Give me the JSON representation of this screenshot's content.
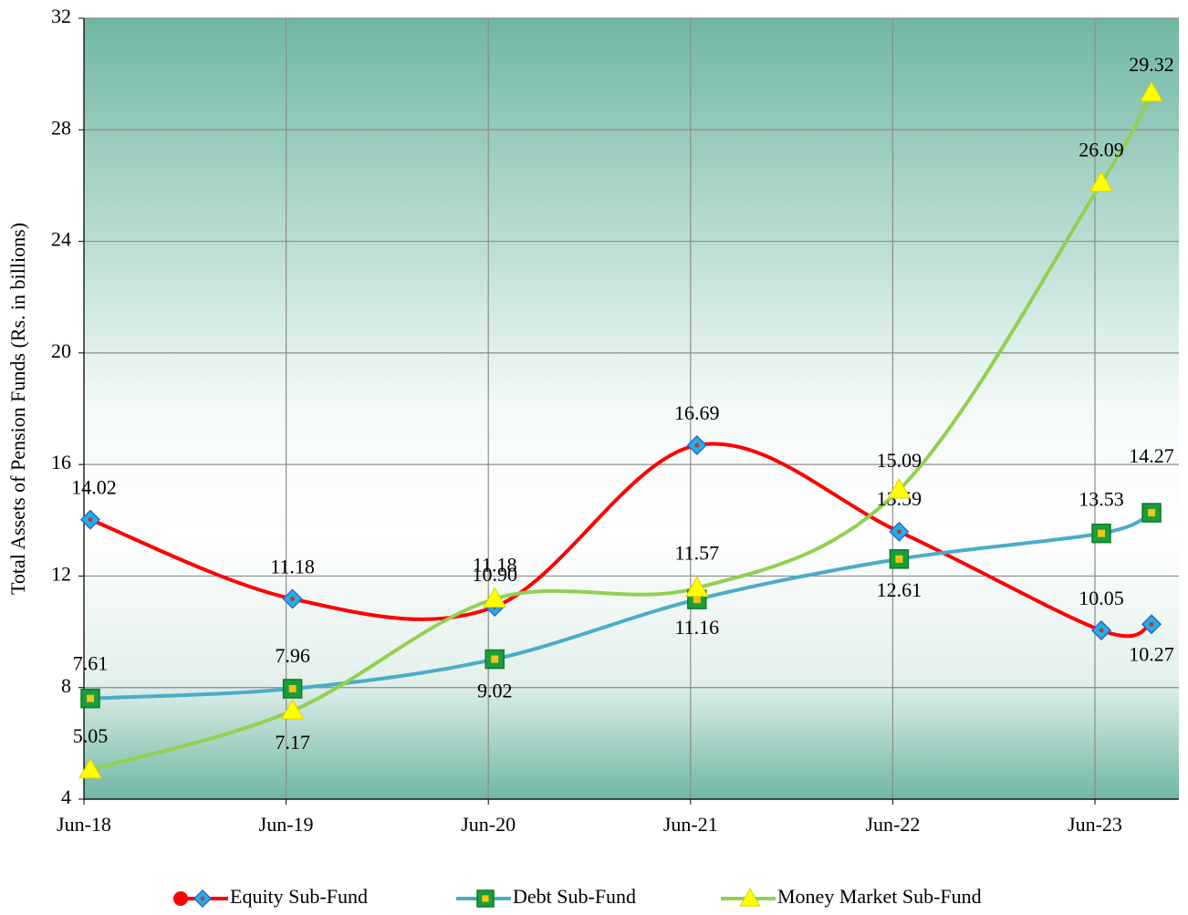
{
  "chart_data": {
    "type": "line",
    "y_label": "Total Assets  of Pension Funds (Rs. in billions)",
    "categories": [
      "Jun-18",
      "Jun-19",
      "Jun-20",
      "Jun-21",
      "Jun-22",
      "Jun-23",
      null
    ],
    "series": [
      {
        "name": "Equity Sub-Fund",
        "color": "#ff0000",
        "marker": "diamond",
        "marker_color": "#1fb0e8",
        "values": [
          14.02,
          11.18,
          10.9,
          16.69,
          13.59,
          10.05,
          10.27
        ],
        "value_labels": [
          "14.02",
          "11.18",
          "10.90",
          "16.69",
          "13.59",
          "10.05",
          "10.27"
        ]
      },
      {
        "name": "Debt Sub-Fund",
        "color": "#4bacc6",
        "marker": "square",
        "marker_color": "#1a9e3a",
        "values": [
          7.61,
          7.96,
          9.02,
          11.16,
          12.61,
          13.53,
          14.27
        ],
        "value_labels": [
          "7.61",
          "7.96",
          "9.02",
          "11.16",
          "12.61",
          "13.53",
          "14.27"
        ]
      },
      {
        "name": "Money Market Sub-Fund",
        "color": "#92d050",
        "marker": "triangle",
        "marker_color": "#ffff00",
        "values": [
          5.05,
          7.17,
          11.18,
          11.57,
          15.09,
          26.09,
          29.32
        ],
        "value_labels": [
          "5.05",
          "7.17",
          "11.18",
          "11.57",
          "15.09",
          "26.09",
          "29.32"
        ]
      }
    ],
    "ylim": [
      4,
      32
    ],
    "yticks": [
      4,
      8,
      12,
      16,
      20,
      24,
      28,
      32
    ],
    "grid": true,
    "legend": "bottom"
  }
}
